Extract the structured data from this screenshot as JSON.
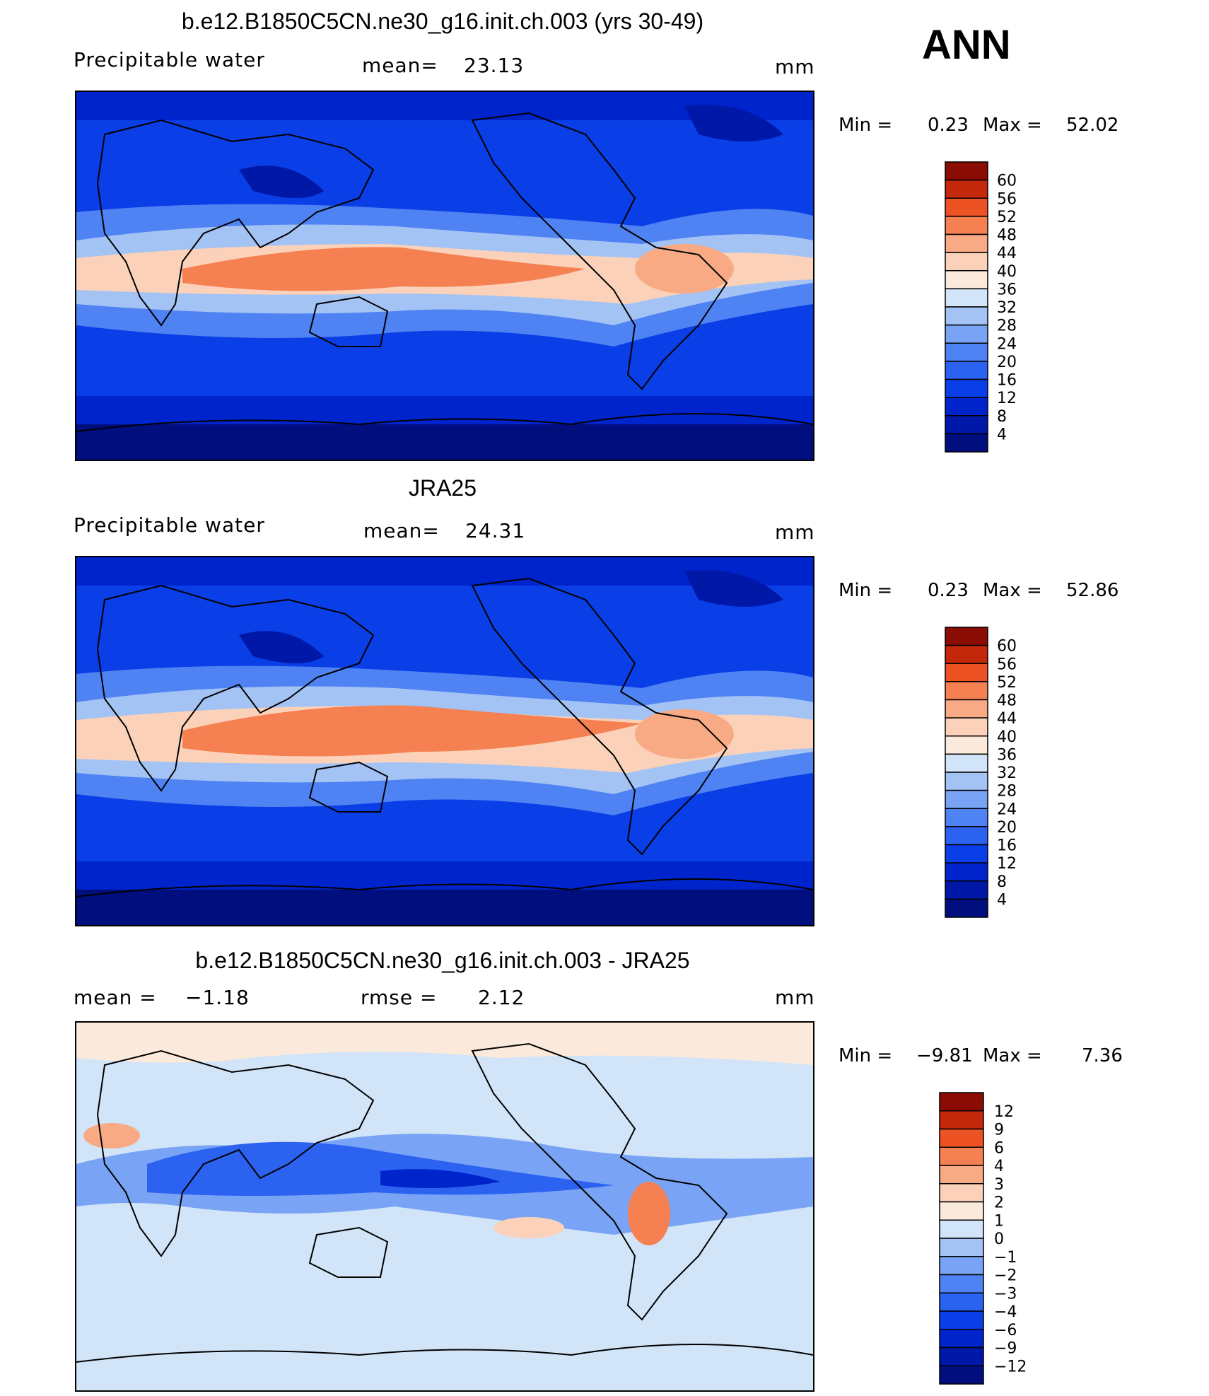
{
  "season": "ANN",
  "panels": [
    {
      "id": "model",
      "title": "b.e12.B1850C5CN.ne30_g16.init.ch.003 (yrs 30-49)",
      "left_label": "Precipitable  water",
      "stat1_label": "mean=",
      "stat1_value": "23.13",
      "stat2_label": "",
      "stat2_value": "",
      "units": "mm",
      "min_label": "Min  =",
      "min_value": "0.23",
      "max_label": "Max  =",
      "max_value": "52.02",
      "colorbar_labels": [
        "4",
        "8",
        "12",
        "16",
        "20",
        "24",
        "28",
        "32",
        "36",
        "40",
        "44",
        "48",
        "52",
        "56",
        "60"
      ],
      "colorbar_colors": [
        "#000e7e",
        "#0018a8",
        "#0024cc",
        "#0a3ee6",
        "#2b62f0",
        "#4f82f2",
        "#79a3f4",
        "#a4c3f5",
        "#d2e4f8",
        "#fbeadb",
        "#fbd2b9",
        "#f8aa84",
        "#f58052",
        "#ec5223",
        "#c3280b",
        "#8b0c05"
      ]
    },
    {
      "id": "obs",
      "title": "JRA25",
      "left_label": "Precipitable  water",
      "stat1_label": "mean=",
      "stat1_value": "24.31",
      "stat2_label": "",
      "stat2_value": "",
      "units": "mm",
      "min_label": "Min  =",
      "min_value": "0.23",
      "max_label": "Max  =",
      "max_value": "52.86",
      "colorbar_labels": [
        "4",
        "8",
        "12",
        "16",
        "20",
        "24",
        "28",
        "32",
        "36",
        "40",
        "44",
        "48",
        "52",
        "56",
        "60"
      ],
      "colorbar_colors": [
        "#000e7e",
        "#0018a8",
        "#0024cc",
        "#0a3ee6",
        "#2b62f0",
        "#4f82f2",
        "#79a3f4",
        "#a4c3f5",
        "#d2e4f8",
        "#fbeadb",
        "#fbd2b9",
        "#f8aa84",
        "#f58052",
        "#ec5223",
        "#c3280b",
        "#8b0c05"
      ]
    },
    {
      "id": "diff",
      "title": "b.e12.B1850C5CN.ne30_g16.init.ch.003 - JRA25",
      "left_label": "mean  =",
      "stat1_label": "rmse  =",
      "stat1_value": "2.12",
      "stat2_label": "",
      "stat2_value": "−1.18",
      "units": "mm",
      "min_label": "Min  =",
      "min_value": "−9.81",
      "max_label": "Max  =",
      "max_value": "7.36",
      "colorbar_labels": [
        "−12",
        "−9",
        "−6",
        "−4",
        "−3",
        "−2",
        "−1",
        "0",
        "1",
        "2",
        "3",
        "4",
        "6",
        "9",
        "12"
      ],
      "colorbar_colors": [
        "#000e7e",
        "#0018a8",
        "#0024cc",
        "#0a3ee6",
        "#2b62f0",
        "#4f82f2",
        "#79a3f4",
        "#a4c3f5",
        "#d2e4f8",
        "#fbeadb",
        "#fbd2b9",
        "#f8aa84",
        "#f58052",
        "#ec5223",
        "#c3280b",
        "#8b0c05"
      ]
    }
  ]
}
